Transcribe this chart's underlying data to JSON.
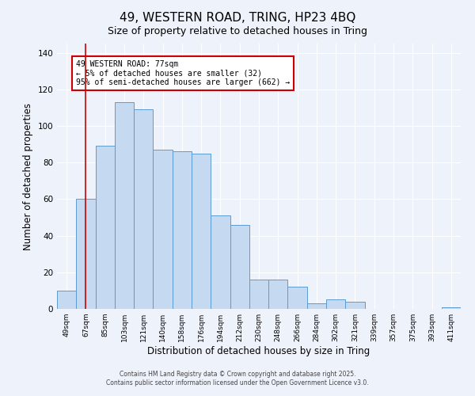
{
  "title": "49, WESTERN ROAD, TRING, HP23 4BQ",
  "subtitle": "Size of property relative to detached houses in Tring",
  "xlabel": "Distribution of detached houses by size in Tring",
  "ylabel": "Number of detached properties",
  "bar_labels": [
    "49sqm",
    "67sqm",
    "85sqm",
    "103sqm",
    "121sqm",
    "140sqm",
    "158sqm",
    "176sqm",
    "194sqm",
    "212sqm",
    "230sqm",
    "248sqm",
    "266sqm",
    "284sqm",
    "302sqm",
    "321sqm",
    "339sqm",
    "357sqm",
    "375sqm",
    "393sqm",
    "411sqm"
  ],
  "bar_values": [
    10,
    60,
    89,
    113,
    109,
    87,
    86,
    85,
    51,
    46,
    16,
    16,
    12,
    3,
    5,
    4,
    0,
    0,
    0,
    0,
    1
  ],
  "bar_color": "#c5d9f1",
  "bar_edge_color": "#5b9bd5",
  "ylim": [
    0,
    145
  ],
  "yticks": [
    0,
    20,
    40,
    60,
    80,
    100,
    120,
    140
  ],
  "vline_x": 1,
  "vline_color": "#cc0000",
  "annotation_line1": "49 WESTERN ROAD: 77sqm",
  "annotation_line2": "← 5% of detached houses are smaller (32)",
  "annotation_line3": "95% of semi-detached houses are larger (662) →",
  "annotation_box_color": "#ffffff",
  "annotation_box_edge": "#cc0000",
  "footer1": "Contains HM Land Registry data © Crown copyright and database right 2025.",
  "footer2": "Contains public sector information licensed under the Open Government Licence v3.0.",
  "bg_color": "#eef2fb",
  "title_fontsize": 11,
  "subtitle_fontsize": 9
}
